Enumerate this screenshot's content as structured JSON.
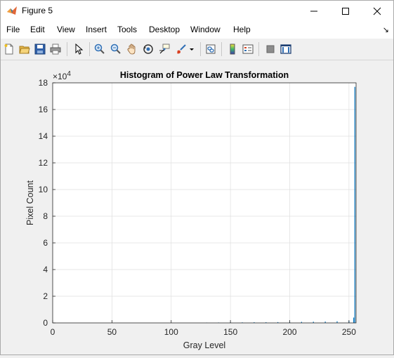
{
  "window": {
    "title": "Figure 5"
  },
  "menu": {
    "items": [
      "File",
      "Edit",
      "View",
      "Insert",
      "Tools",
      "Desktop",
      "Window",
      "Help"
    ]
  },
  "toolbar": {
    "icons": [
      "new-figure-icon",
      "open-file-icon",
      "save-icon",
      "print-icon",
      "pointer-icon",
      "zoom-in-icon",
      "zoom-out-icon",
      "pan-icon",
      "rotate-3d-icon",
      "data-cursor-icon",
      "brush-icon",
      "link-plot-icon",
      "colorbar-icon",
      "legend-icon",
      "hide-plot-tools-icon",
      "show-plot-tools-icon"
    ]
  },
  "chart_data": {
    "type": "bar",
    "title": "Histogram of Power Law Transformation",
    "xlabel": "Gray Level",
    "ylabel": "Pixel Count",
    "exponent_label": "×10",
    "exponent_value": "4",
    "xlim": [
      0,
      256
    ],
    "ylim": [
      0,
      18
    ],
    "y_multiplier": 10000,
    "xticks": [
      0,
      50,
      100,
      150,
      200,
      250
    ],
    "xtick_labels": [
      "0",
      "50",
      "100",
      "150",
      "200",
      "250"
    ],
    "yticks": [
      0,
      2,
      4,
      6,
      8,
      10,
      12,
      14,
      16,
      18
    ],
    "ytick_labels": [
      "0",
      "2",
      "4",
      "6",
      "8",
      "10",
      "12",
      "14",
      "16",
      "18"
    ],
    "grid": true,
    "bar_color": "#0072bd",
    "bins": [
      {
        "x": 130,
        "value": 0.02
      },
      {
        "x": 140,
        "value": 0.03
      },
      {
        "x": 150,
        "value": 0.04
      },
      {
        "x": 160,
        "value": 0.04
      },
      {
        "x": 170,
        "value": 0.05
      },
      {
        "x": 180,
        "value": 0.05
      },
      {
        "x": 190,
        "value": 0.06
      },
      {
        "x": 200,
        "value": 0.07
      },
      {
        "x": 210,
        "value": 0.08
      },
      {
        "x": 220,
        "value": 0.09
      },
      {
        "x": 230,
        "value": 0.1
      },
      {
        "x": 240,
        "value": 0.12
      },
      {
        "x": 250,
        "value": 0.15
      },
      {
        "x": 254,
        "value": 0.4
      },
      {
        "x": 255,
        "value": 17.7
      }
    ]
  }
}
